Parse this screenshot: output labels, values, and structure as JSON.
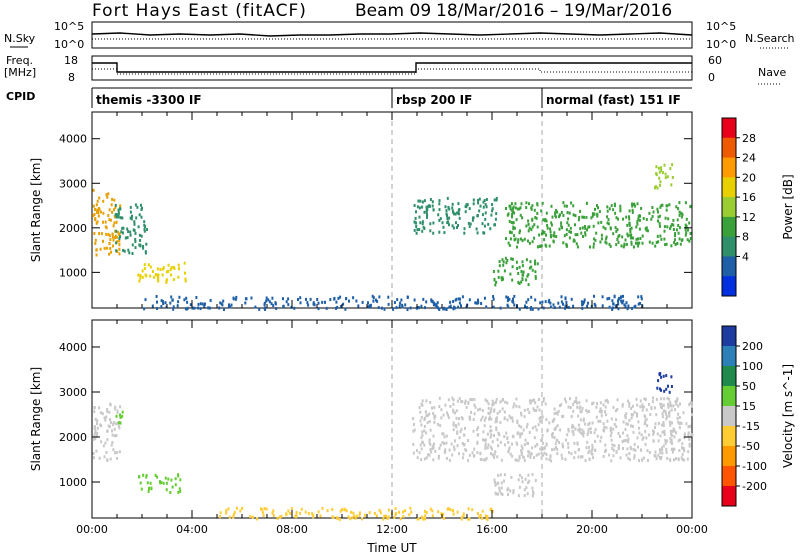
{
  "header": {
    "station": "Fort Hays East (fitACF)",
    "beam": "Beam 09",
    "dates": "18/Mar/2016 – 19/Mar/2016"
  },
  "top_panels": {
    "nsky_label": "N.Sky",
    "nsky_ticks": [
      "10^5",
      "10^0"
    ],
    "nsearch_label": "N.Search",
    "freq_label_1": "Freq.",
    "freq_label_2": "[MHz]",
    "freq_ticks": [
      "18",
      "8"
    ],
    "nave_ticks": [
      "60",
      "0"
    ],
    "nave_label": "Nave",
    "cpid_label": "CPID"
  },
  "cpid_segments": [
    {
      "label": "themis -3300 IF",
      "start_hour": 0
    },
    {
      "label": "rbsp 200 IF",
      "start_hour": 12
    },
    {
      "label": "normal (fast) 151 IF",
      "start_hour": 18
    }
  ],
  "chart_data": [
    {
      "type": "heatmap",
      "name": "power-panel",
      "ylabel": "Slant Range [km]",
      "y_ticks": [
        "1000",
        "2000",
        "3000",
        "4000"
      ],
      "ylim": [
        200,
        4600
      ],
      "xlim": [
        0,
        24
      ],
      "colorbar_label": "Power [dB]",
      "colorbar_ticks": [
        "28",
        "24",
        "20",
        "16",
        "12",
        "8",
        "4"
      ],
      "colorbar_colors": [
        "#e8001a",
        "#ee5a00",
        "#ff9a00",
        "#e8d000",
        "#9acd32",
        "#3aa03a",
        "#2f8f6a",
        "#1e5fa8",
        "#0030e0"
      ],
      "regions": [
        {
          "t": [
            0.0,
            1.1
          ],
          "r": [
            1400,
            2900
          ],
          "color": "#e8a000"
        },
        {
          "t": [
            0.9,
            2.2
          ],
          "r": [
            1450,
            2550
          ],
          "color": "#2f8f6a"
        },
        {
          "t": [
            1.8,
            3.8
          ],
          "r": [
            800,
            1250
          ],
          "color": "#e8d000"
        },
        {
          "t": [
            12.8,
            16.2
          ],
          "r": [
            1900,
            2700
          ],
          "color": "#2f8f6a"
        },
        {
          "t": [
            16.0,
            17.8
          ],
          "r": [
            750,
            1350
          ],
          "color": "#3aa03a"
        },
        {
          "t": [
            16.5,
            24.0
          ],
          "r": [
            1600,
            2600
          ],
          "color": "#3aa03a"
        },
        {
          "t": [
            22.4,
            23.2
          ],
          "r": [
            2900,
            3450
          ],
          "color": "#9acd32"
        },
        {
          "t": [
            2.0,
            22.0
          ],
          "r": [
            200,
            500
          ],
          "color": "#1e5fa8"
        }
      ]
    },
    {
      "type": "heatmap",
      "name": "velocity-panel",
      "ylabel": "Slant Range [km]",
      "y_ticks": [
        "1000",
        "2000",
        "3000",
        "4000"
      ],
      "ylim": [
        200,
        4600
      ],
      "xlim": [
        0,
        24
      ],
      "xlabel": "Time UT",
      "x_ticks": [
        "00:00",
        "04:00",
        "08:00",
        "12:00",
        "16:00",
        "20:00",
        "00:00"
      ],
      "colorbar_label": "Velocity [m s^-1]",
      "colorbar_ticks": [
        "200",
        "100",
        "50",
        "15",
        "-15",
        "-50",
        "-100",
        "-200"
      ],
      "colorbar_colors": [
        "#1e3ca0",
        "#2d7fb8",
        "#1f8a4c",
        "#66cc33",
        "#c8c8c8",
        "#ffcc33",
        "#ff9900",
        "#ff5500",
        "#e8001a"
      ],
      "regions": [
        {
          "t": [
            0.0,
            1.1
          ],
          "r": [
            1500,
            2800
          ],
          "color": "#c8c8c8"
        },
        {
          "t": [
            0.9,
            1.2
          ],
          "r": [
            2300,
            2800
          ],
          "color": "#66cc33"
        },
        {
          "t": [
            1.8,
            3.5
          ],
          "r": [
            800,
            1200
          ],
          "color": "#66cc33"
        },
        {
          "t": [
            12.8,
            24.0
          ],
          "r": [
            1500,
            2900
          ],
          "color": "#c8c8c8"
        },
        {
          "t": [
            22.5,
            23.2
          ],
          "r": [
            3000,
            3450
          ],
          "color": "#1e3ca0"
        },
        {
          "t": [
            16.0,
            17.8
          ],
          "r": [
            700,
            1200
          ],
          "color": "#c8c8c8"
        },
        {
          "t": [
            5.0,
            16.0
          ],
          "r": [
            200,
            450
          ],
          "color": "#ffcc33"
        }
      ]
    }
  ]
}
